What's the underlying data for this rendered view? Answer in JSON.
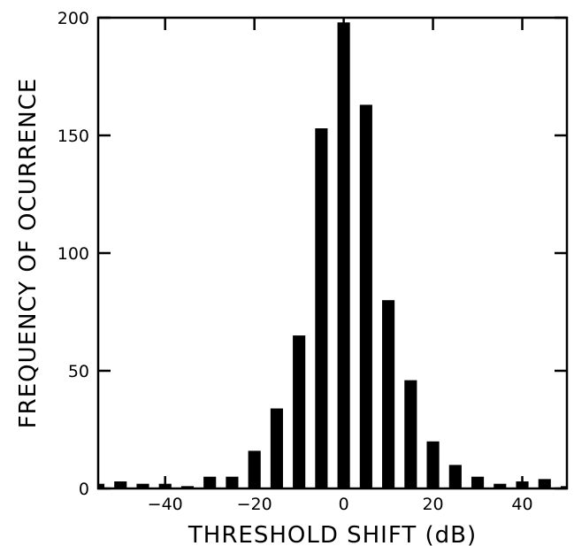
{
  "chart_data": {
    "type": "bar",
    "title": "",
    "xlabel": "THRESHOLD SHIFT (dB)",
    "ylabel": "FREQUENCY OF OCURRENCE",
    "xlim": [
      -55,
      50
    ],
    "ylim": [
      0,
      200
    ],
    "xticks": [
      -40,
      -20,
      0,
      20,
      40
    ],
    "yticks": [
      0,
      50,
      100,
      150,
      200
    ],
    "xtick_labels": [
      "−40",
      "−20",
      "0",
      "20",
      "40"
    ],
    "ytick_labels": [
      "0",
      "50",
      "100",
      "150",
      "200"
    ],
    "bar_width": 2.8,
    "x": [
      -55,
      -50,
      -45,
      -40,
      -35,
      -30,
      -25,
      -20,
      -15,
      -10,
      -5,
      0,
      5,
      10,
      15,
      20,
      25,
      30,
      35,
      40,
      45,
      50
    ],
    "values": [
      2,
      3,
      2,
      2,
      1,
      5,
      5,
      16,
      34,
      65,
      153,
      198,
      163,
      80,
      46,
      20,
      10,
      5,
      2,
      3,
      4,
      1
    ],
    "grid": false,
    "colors": {
      "bar": "#000000",
      "axis": "#000000",
      "background": "#ffffff"
    }
  }
}
